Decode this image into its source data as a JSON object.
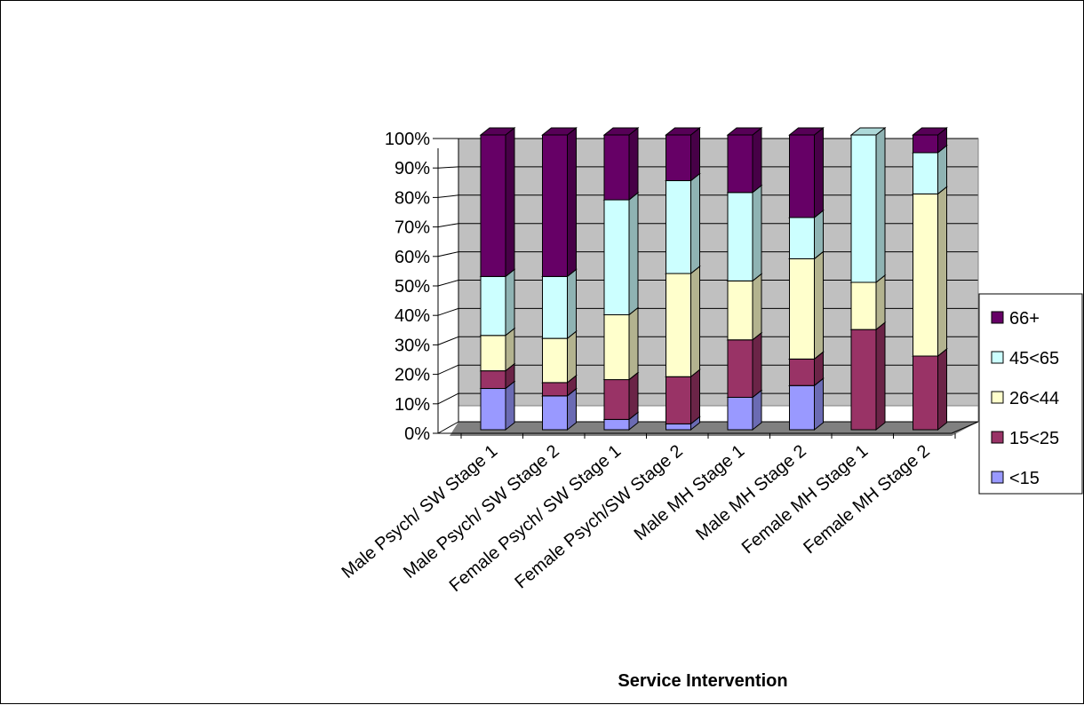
{
  "chart_data": {
    "type": "bar",
    "stacked": "percent",
    "three_d": true,
    "title": "",
    "xlabel": "Service Intervention",
    "ylabel": "",
    "ylim": [
      0,
      100
    ],
    "yticks": [
      "0%",
      "10%",
      "20%",
      "30%",
      "40%",
      "50%",
      "60%",
      "70%",
      "80%",
      "90%",
      "100%"
    ],
    "grid": true,
    "legend_position": "right",
    "categories": [
      "Male Psych/ SW Stage 1",
      "Male Psych/ SW Stage 2",
      "Female Psych/ SW Stage 1",
      "Female Psych/SW Stage 2",
      "Male MH Stage 1",
      "Male MH Stage 2",
      "Female MH Stage 1",
      "Female MH Stage 2"
    ],
    "series": [
      {
        "name": "<15",
        "color": "#9999ff",
        "values": [
          14,
          11.5,
          3.5,
          2,
          11,
          15,
          0,
          0
        ]
      },
      {
        "name": "15<25",
        "color": "#993366",
        "values": [
          6,
          4.5,
          13.5,
          16,
          19.5,
          9,
          34,
          25
        ]
      },
      {
        "name": "26<44",
        "color": "#ffffcc",
        "values": [
          12,
          15,
          22,
          35,
          20,
          34,
          16,
          55
        ]
      },
      {
        "name": "45<65",
        "color": "#ccffff",
        "values": [
          20,
          21,
          39,
          31.5,
          30,
          14,
          50,
          14
        ]
      },
      {
        "name": "66+",
        "color": "#660066",
        "values": [
          48,
          48,
          22,
          15.5,
          19.5,
          28,
          0,
          6
        ]
      }
    ],
    "colors": {
      "wall": "#c0c0c0",
      "floor": "#808080",
      "gridline": "#000000"
    }
  }
}
